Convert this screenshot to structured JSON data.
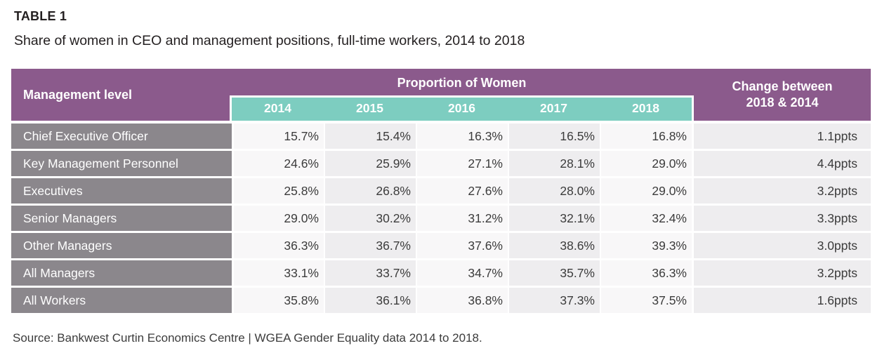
{
  "page": {
    "table_label": "TABLE 1",
    "title": "Share of women in CEO and management positions, full-time workers, 2014 to 2018",
    "source": "Source: Bankwest Curtin Economics Centre | WGEA Gender Equality data 2014 to 2018."
  },
  "table": {
    "row_header": "Management level",
    "group_header": "Proportion of Women",
    "change_header_line1": "Change between",
    "change_header_line2": "2018 & 2014",
    "years": [
      "2014",
      "2015",
      "2016",
      "2017",
      "2018"
    ],
    "rows": [
      {
        "label": "Chief Executive Officer",
        "values": [
          "15.7%",
          "15.4%",
          "16.3%",
          "16.5%",
          "16.8%"
        ],
        "change": "1.1ppts"
      },
      {
        "label": "Key Management Personnel",
        "values": [
          "24.6%",
          "25.9%",
          "27.1%",
          "28.1%",
          "29.0%"
        ],
        "change": "4.4ppts"
      },
      {
        "label": "Executives",
        "values": [
          "25.8%",
          "26.8%",
          "27.6%",
          "28.0%",
          "29.0%"
        ],
        "change": "3.2ppts"
      },
      {
        "label": "Senior Managers",
        "values": [
          "29.0%",
          "30.2%",
          "31.2%",
          "32.1%",
          "32.4%"
        ],
        "change": "3.3ppts"
      },
      {
        "label": "Other Managers",
        "values": [
          "36.3%",
          "36.7%",
          "37.6%",
          "38.6%",
          "39.3%"
        ],
        "change": "3.0ppts"
      },
      {
        "label": "All Managers",
        "values": [
          "33.1%",
          "33.7%",
          "34.7%",
          "35.7%",
          "36.3%"
        ],
        "change": "3.2ppts"
      },
      {
        "label": "All Workers",
        "values": [
          "35.8%",
          "36.1%",
          "36.8%",
          "37.3%",
          "37.5%"
        ],
        "change": "1.6ppts"
      }
    ],
    "colors": {
      "header_purple": "#8b5a8c",
      "year_band_teal": "#7dcdc0",
      "row_label_gray": "#8b878c",
      "stripe_light": "#f8f7f8",
      "stripe_dark": "#eeedef"
    }
  },
  "chart_data": {
    "type": "table",
    "title": "Share of women in CEO and management positions, full-time workers, 2014 to 2018",
    "row_dimension": "Management level",
    "columns": [
      "2014",
      "2015",
      "2016",
      "2017",
      "2018",
      "Change between 2018 & 2014"
    ],
    "unit": "percent (change in percentage points)",
    "rows": [
      {
        "label": "Chief Executive Officer",
        "values_pct": [
          15.7,
          15.4,
          16.3,
          16.5,
          16.8
        ],
        "change_ppts": 1.1
      },
      {
        "label": "Key Management Personnel",
        "values_pct": [
          24.6,
          25.9,
          27.1,
          28.1,
          29.0
        ],
        "change_ppts": 4.4
      },
      {
        "label": "Executives",
        "values_pct": [
          25.8,
          26.8,
          27.6,
          28.0,
          29.0
        ],
        "change_ppts": 3.2
      },
      {
        "label": "Senior Managers",
        "values_pct": [
          29.0,
          30.2,
          31.2,
          32.1,
          32.4
        ],
        "change_ppts": 3.3
      },
      {
        "label": "Other Managers",
        "values_pct": [
          36.3,
          36.7,
          37.6,
          38.6,
          39.3
        ],
        "change_ppts": 3.0
      },
      {
        "label": "All Managers",
        "values_pct": [
          33.1,
          33.7,
          34.7,
          35.7,
          36.3
        ],
        "change_ppts": 3.2
      },
      {
        "label": "All Workers",
        "values_pct": [
          35.8,
          36.1,
          36.8,
          37.3,
          37.5
        ],
        "change_ppts": 1.6
      }
    ],
    "source": "Bankwest Curtin Economics Centre | WGEA Gender Equality data 2014 to 2018"
  }
}
